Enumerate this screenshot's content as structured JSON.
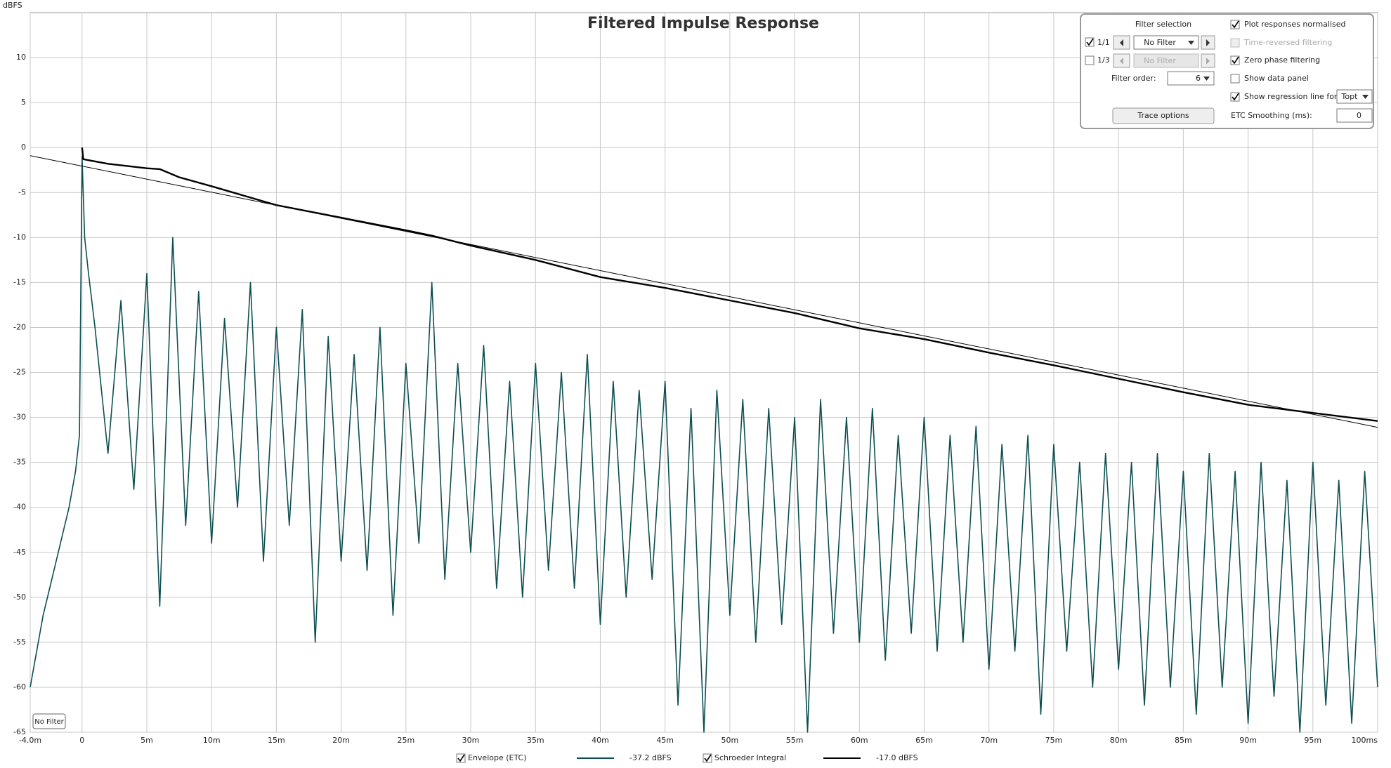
{
  "chart_data": {
    "type": "line",
    "title": "Filtered Impulse Response",
    "y_label": "dBFS",
    "xlim": [
      -4,
      100
    ],
    "ylim": [
      -65,
      15
    ],
    "xticks": [
      {
        "value": -4,
        "label": "-4.0m"
      },
      0,
      {
        "value": 5,
        "label": "5m"
      },
      {
        "value": 10,
        "label": "10m"
      },
      {
        "value": 15,
        "label": "15m"
      },
      {
        "value": 20,
        "label": "20m"
      },
      {
        "value": 25,
        "label": "25m"
      },
      {
        "value": 30,
        "label": "30m"
      },
      {
        "value": 35,
        "label": "35m"
      },
      {
        "value": 40,
        "label": "40m"
      },
      {
        "value": 45,
        "label": "45m"
      },
      {
        "value": 50,
        "label": "50m"
      },
      {
        "value": 55,
        "label": "55m"
      },
      {
        "value": 60,
        "label": "60m"
      },
      {
        "value": 65,
        "label": "65m"
      },
      {
        "value": 70,
        "label": "70m"
      },
      {
        "value": 75,
        "label": "75m"
      },
      {
        "value": 80,
        "label": "80m"
      },
      {
        "value": 85,
        "label": "85m"
      },
      {
        "value": 90,
        "label": "90m"
      },
      {
        "value": 95,
        "label": "95m"
      },
      {
        "value": 100,
        "label": "100ms"
      }
    ],
    "yticks": [
      -65,
      -60,
      -55,
      -50,
      -45,
      -40,
      -35,
      -30,
      -25,
      -20,
      -15,
      -10,
      -5,
      0,
      5,
      10
    ],
    "grid": true,
    "series": [
      {
        "name": "Envelope (ETC)",
        "readout": "-37.2 dBFS",
        "color": "#0d4f50",
        "width": 1.6,
        "x": [
          -4,
          -3.5,
          -3,
          -2.5,
          -2,
          -1.5,
          -1,
          -0.5,
          -0.2,
          0,
          0.2,
          0.5,
          1,
          2,
          3,
          4,
          5,
          6,
          7,
          8,
          9,
          10,
          11,
          12,
          13,
          14,
          15,
          16,
          17,
          18,
          19,
          20,
          21,
          22,
          23,
          24,
          25,
          26,
          27,
          28,
          29,
          30,
          31,
          32,
          33,
          34,
          35,
          36,
          37,
          38,
          39,
          40,
          41,
          42,
          43,
          44,
          45,
          46,
          47,
          48,
          49,
          50,
          51,
          52,
          53,
          54,
          55,
          56,
          57,
          58,
          59,
          60,
          61,
          62,
          63,
          64,
          65,
          66,
          67,
          68,
          69,
          70,
          71,
          72,
          73,
          74,
          75,
          76,
          77,
          78,
          79,
          80,
          81,
          82,
          83,
          84,
          85,
          86,
          87,
          88,
          89,
          90,
          91,
          92,
          93,
          94,
          95,
          96,
          97,
          98,
          99,
          100
        ],
        "values": [
          -60,
          -56,
          -52,
          -49,
          -46,
          -43,
          -40,
          -36,
          -32,
          -1,
          -10,
          -14,
          -20,
          -34,
          -17,
          -38,
          -14,
          -51,
          -10,
          -42,
          -16,
          -44,
          -19,
          -40,
          -15,
          -46,
          -20,
          -42,
          -18,
          -55,
          -21,
          -46,
          -23,
          -47,
          -20,
          -52,
          -24,
          -44,
          -15,
          -48,
          -24,
          -45,
          -22,
          -49,
          -26,
          -50,
          -24,
          -47,
          -25,
          -49,
          -23,
          -53,
          -26,
          -50,
          -27,
          -48,
          -26,
          -62,
          -29,
          -65,
          -27,
          -52,
          -28,
          -55,
          -29,
          -53,
          -30,
          -65,
          -28,
          -54,
          -30,
          -55,
          -29,
          -57,
          -32,
          -54,
          -30,
          -56,
          -32,
          -55,
          -31,
          -58,
          -33,
          -56,
          -32,
          -63,
          -33,
          -56,
          -35,
          -60,
          -34,
          -58,
          -35,
          -62,
          -34,
          -60,
          -36,
          -63,
          -34,
          -60,
          -36,
          -64,
          -35,
          -61,
          -37,
          -65,
          -35,
          -62,
          -37,
          -64,
          -36,
          -60
        ]
      },
      {
        "name": "Schroeder Integral",
        "readout": "-17.0 dBFS",
        "color": "#000000",
        "width": 2.4,
        "x": [
          0,
          0.1,
          2,
          5,
          6,
          7.5,
          10,
          15,
          20,
          25,
          27,
          30,
          35,
          40,
          45,
          50,
          55,
          60,
          65,
          70,
          75,
          80,
          85,
          90,
          95,
          100
        ],
        "values": [
          0,
          -1.3,
          -1.8,
          -2.3,
          -2.4,
          -3.3,
          -4.3,
          -6.4,
          -7.8,
          -9.2,
          -9.8,
          -10.9,
          -12.5,
          -14.4,
          -15.6,
          -17.0,
          -18.4,
          -20.1,
          -21.3,
          -22.8,
          -24.2,
          -25.7,
          -27.2,
          -28.6,
          -29.5,
          -30.4
        ]
      },
      {
        "color": "#000000",
        "width": 1,
        "x": [
          -4,
          100
        ],
        "values": [
          -0.9,
          -31.1
        ]
      }
    ],
    "filter_label": "No Filter"
  },
  "controls": {
    "filter_selection": "Filter selection",
    "band_1": "1/1",
    "band_1_filter": "No Filter",
    "band_3": "1/3",
    "band_3_filter": "No Filter",
    "filter_order_label": "Filter order:",
    "filter_order": "6",
    "trace_options": "Trace options",
    "plot_normalised": "Plot responses normalised",
    "time_reversed": "Time-reversed filtering",
    "zero_phase": "Zero phase filtering",
    "show_data_panel": "Show data panel",
    "show_regression": "Show regression line for:",
    "regression_for": "Topt",
    "etc_smoothing_label": "ETC Smoothing (ms):",
    "etc_smoothing": "0"
  }
}
